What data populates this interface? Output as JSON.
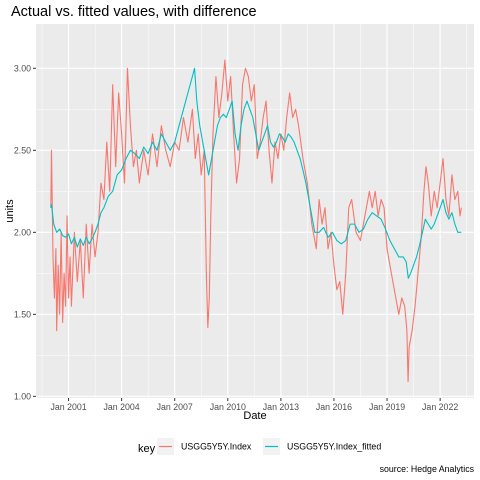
{
  "chart_data": {
    "type": "line",
    "title": "Actual vs. fitted values, with difference",
    "xlabel": "Date",
    "ylabel": "units",
    "caption": "source: Hedge Analytics",
    "legend": {
      "title": "key",
      "position": "bottom",
      "entries": [
        {
          "label": "USGG5Y5Y.Index",
          "color": "#F8766D"
        },
        {
          "label": "USGG5Y5Y.Index_fitted",
          "color": "#00BFC4"
        }
      ]
    },
    "x_ticks": [
      {
        "label": "Jan 2001",
        "value": "2001-01-01"
      },
      {
        "label": "Jan 2004",
        "value": "2004-01-01"
      },
      {
        "label": "Jan 2007",
        "value": "2007-01-01"
      },
      {
        "label": "Jan 2010",
        "value": "2010-01-01"
      },
      {
        "label": "Jan 2013",
        "value": "2013-01-01"
      },
      {
        "label": "Jan 2016",
        "value": "2016-01-01"
      },
      {
        "label": "Jan 2019",
        "value": "2019-01-01"
      },
      {
        "label": "Jan 2022",
        "value": "2022-01-01"
      }
    ],
    "y_ticks": [
      "1.00",
      "1.50",
      "2.00",
      "2.50",
      "3.00"
    ],
    "xlim": [
      "1999-03-01",
      "2023-12-01"
    ],
    "ylim": [
      0.99,
      3.27
    ],
    "grid": true,
    "panel_background": "#EBEBEB",
    "series": [
      {
        "name": "USGG5Y5Y.Index",
        "color": "#F8766D",
        "points": [
          [
            "2000-01-01",
            2.15
          ],
          [
            "2000-01-15",
            2.5
          ],
          [
            "2000-02-15",
            1.85
          ],
          [
            "2000-03-15",
            1.6
          ],
          [
            "2000-04-15",
            1.9
          ],
          [
            "2000-05-01",
            1.4
          ],
          [
            "2000-06-01",
            1.8
          ],
          [
            "2000-07-01",
            1.5
          ],
          [
            "2000-08-01",
            2.0
          ],
          [
            "2000-09-01",
            1.45
          ],
          [
            "2000-10-01",
            1.75
          ],
          [
            "2000-11-01",
            1.55
          ],
          [
            "2000-12-01",
            2.1
          ],
          [
            "2001-01-01",
            1.6
          ],
          [
            "2001-02-01",
            1.85
          ],
          [
            "2001-03-01",
            1.55
          ],
          [
            "2001-05-01",
            2.0
          ],
          [
            "2001-07-01",
            1.7
          ],
          [
            "2001-09-01",
            1.95
          ],
          [
            "2001-11-01",
            1.6
          ],
          [
            "2002-01-01",
            2.05
          ],
          [
            "2002-03-01",
            1.75
          ],
          [
            "2002-05-01",
            2.05
          ],
          [
            "2002-07-01",
            1.85
          ],
          [
            "2002-09-01",
            2.0
          ],
          [
            "2002-11-01",
            2.3
          ],
          [
            "2003-01-01",
            2.2
          ],
          [
            "2003-03-01",
            2.55
          ],
          [
            "2003-05-01",
            2.25
          ],
          [
            "2003-07-01",
            2.9
          ],
          [
            "2003-09-01",
            2.4
          ],
          [
            "2003-11-01",
            2.85
          ],
          [
            "2004-01-01",
            2.6
          ],
          [
            "2004-03-01",
            2.3
          ],
          [
            "2004-05-01",
            3.0
          ],
          [
            "2004-07-01",
            2.65
          ],
          [
            "2004-09-01",
            2.4
          ],
          [
            "2004-11-01",
            2.5
          ],
          [
            "2005-01-01",
            2.3
          ],
          [
            "2005-04-01",
            2.5
          ],
          [
            "2005-07-01",
            2.35
          ],
          [
            "2005-10-01",
            2.6
          ],
          [
            "2006-01-01",
            2.4
          ],
          [
            "2006-04-01",
            2.65
          ],
          [
            "2006-07-01",
            2.5
          ],
          [
            "2006-10-01",
            2.4
          ],
          [
            "2007-01-01",
            2.55
          ],
          [
            "2007-04-01",
            2.5
          ],
          [
            "2007-07-01",
            2.7
          ],
          [
            "2007-10-01",
            2.55
          ],
          [
            "2008-01-01",
            2.75
          ],
          [
            "2008-03-01",
            2.45
          ],
          [
            "2008-05-01",
            2.6
          ],
          [
            "2008-07-01",
            2.35
          ],
          [
            "2008-09-01",
            2.5
          ],
          [
            "2008-10-15",
            1.75
          ],
          [
            "2008-11-15",
            1.42
          ],
          [
            "2008-12-15",
            1.6
          ],
          [
            "2009-01-15",
            2.1
          ],
          [
            "2009-03-01",
            2.6
          ],
          [
            "2009-05-01",
            2.95
          ],
          [
            "2009-07-01",
            2.7
          ],
          [
            "2009-09-01",
            2.85
          ],
          [
            "2009-11-01",
            3.05
          ],
          [
            "2010-01-01",
            2.8
          ],
          [
            "2010-03-01",
            2.95
          ],
          [
            "2010-05-01",
            2.6
          ],
          [
            "2010-07-01",
            2.3
          ],
          [
            "2010-09-01",
            2.45
          ],
          [
            "2010-11-01",
            2.9
          ],
          [
            "2011-01-01",
            3.0
          ],
          [
            "2011-03-01",
            2.95
          ],
          [
            "2011-05-01",
            2.8
          ],
          [
            "2011-07-01",
            2.9
          ],
          [
            "2011-09-01",
            2.45
          ],
          [
            "2011-11-01",
            2.55
          ],
          [
            "2012-01-01",
            2.7
          ],
          [
            "2012-03-01",
            2.8
          ],
          [
            "2012-05-01",
            2.5
          ],
          [
            "2012-07-01",
            2.3
          ],
          [
            "2012-09-01",
            2.55
          ],
          [
            "2012-11-01",
            2.45
          ],
          [
            "2013-01-01",
            2.6
          ],
          [
            "2013-03-01",
            2.5
          ],
          [
            "2013-05-01",
            2.7
          ],
          [
            "2013-07-01",
            2.85
          ],
          [
            "2013-09-01",
            2.7
          ],
          [
            "2013-11-01",
            2.75
          ],
          [
            "2014-01-01",
            2.65
          ],
          [
            "2014-04-01",
            2.45
          ],
          [
            "2014-07-01",
            2.3
          ],
          [
            "2014-10-01",
            2.05
          ],
          [
            "2015-01-01",
            1.9
          ],
          [
            "2015-03-01",
            2.2
          ],
          [
            "2015-05-01",
            2.05
          ],
          [
            "2015-07-01",
            2.15
          ],
          [
            "2015-09-01",
            1.9
          ],
          [
            "2015-11-01",
            2.0
          ],
          [
            "2016-01-01",
            1.8
          ],
          [
            "2016-03-01",
            1.65
          ],
          [
            "2016-05-01",
            1.7
          ],
          [
            "2016-07-01",
            1.5
          ],
          [
            "2016-09-01",
            1.75
          ],
          [
            "2016-11-01",
            2.15
          ],
          [
            "2017-01-01",
            2.2
          ],
          [
            "2017-04-01",
            2.0
          ],
          [
            "2017-07-01",
            1.95
          ],
          [
            "2017-10-01",
            2.1
          ],
          [
            "2018-01-01",
            2.25
          ],
          [
            "2018-03-01",
            2.15
          ],
          [
            "2018-05-01",
            2.25
          ],
          [
            "2018-07-01",
            2.1
          ],
          [
            "2018-09-01",
            2.2
          ],
          [
            "2018-11-01",
            2.15
          ],
          [
            "2019-01-01",
            1.9
          ],
          [
            "2019-03-01",
            1.8
          ],
          [
            "2019-05-01",
            1.7
          ],
          [
            "2019-07-01",
            1.6
          ],
          [
            "2019-09-01",
            1.5
          ],
          [
            "2019-11-01",
            1.6
          ],
          [
            "2020-01-01",
            1.55
          ],
          [
            "2020-02-15",
            1.4
          ],
          [
            "2020-03-10",
            1.09
          ],
          [
            "2020-04-01",
            1.3
          ],
          [
            "2020-06-01",
            1.4
          ],
          [
            "2020-08-01",
            1.55
          ],
          [
            "2020-10-01",
            1.75
          ],
          [
            "2020-12-01",
            1.95
          ],
          [
            "2021-02-01",
            2.25
          ],
          [
            "2021-03-15",
            2.4
          ],
          [
            "2021-05-01",
            2.3
          ],
          [
            "2021-07-01",
            2.1
          ],
          [
            "2021-09-01",
            2.25
          ],
          [
            "2021-11-01",
            2.15
          ],
          [
            "2022-01-01",
            2.3
          ],
          [
            "2022-03-01",
            2.45
          ],
          [
            "2022-05-01",
            2.2
          ],
          [
            "2022-07-01",
            2.1
          ],
          [
            "2022-09-01",
            2.35
          ],
          [
            "2022-11-01",
            2.2
          ],
          [
            "2023-01-01",
            2.25
          ],
          [
            "2023-02-15",
            2.1
          ],
          [
            "2023-03-15",
            2.15
          ]
        ]
      },
      {
        "name": "USGG5Y5Y.Index_fitted",
        "color": "#00BFC4",
        "points": [
          [
            "2000-01-01",
            2.15
          ],
          [
            "2000-01-15",
            2.17
          ],
          [
            "2000-03-01",
            2.05
          ],
          [
            "2000-05-01",
            2.0
          ],
          [
            "2000-07-01",
            2.02
          ],
          [
            "2000-09-01",
            1.98
          ],
          [
            "2000-11-01",
            1.97
          ],
          [
            "2001-01-01",
            1.99
          ],
          [
            "2001-03-01",
            1.93
          ],
          [
            "2001-05-01",
            1.97
          ],
          [
            "2001-07-01",
            1.91
          ],
          [
            "2001-09-01",
            1.96
          ],
          [
            "2001-11-01",
            1.92
          ],
          [
            "2002-01-01",
            1.97
          ],
          [
            "2002-03-01",
            1.93
          ],
          [
            "2002-05-01",
            1.96
          ],
          [
            "2002-07-01",
            2.0
          ],
          [
            "2002-09-01",
            2.05
          ],
          [
            "2002-11-01",
            2.12
          ],
          [
            "2003-01-01",
            2.15
          ],
          [
            "2003-04-01",
            2.22
          ],
          [
            "2003-07-01",
            2.25
          ],
          [
            "2003-10-01",
            2.35
          ],
          [
            "2004-01-01",
            2.38
          ],
          [
            "2004-04-01",
            2.45
          ],
          [
            "2004-07-01",
            2.5
          ],
          [
            "2004-10-01",
            2.48
          ],
          [
            "2005-01-01",
            2.45
          ],
          [
            "2005-04-01",
            2.52
          ],
          [
            "2005-07-01",
            2.48
          ],
          [
            "2005-10-01",
            2.55
          ],
          [
            "2006-01-01",
            2.5
          ],
          [
            "2006-04-01",
            2.6
          ],
          [
            "2006-07-01",
            2.55
          ],
          [
            "2006-10-01",
            2.5
          ],
          [
            "2007-01-01",
            2.55
          ],
          [
            "2007-04-01",
            2.65
          ],
          [
            "2007-07-01",
            2.75
          ],
          [
            "2007-10-01",
            2.85
          ],
          [
            "2008-01-01",
            2.95
          ],
          [
            "2008-02-15",
            3.0
          ],
          [
            "2008-04-01",
            2.8
          ],
          [
            "2008-06-01",
            2.65
          ],
          [
            "2008-08-01",
            2.55
          ],
          [
            "2008-10-01",
            2.45
          ],
          [
            "2008-12-01",
            2.35
          ],
          [
            "2009-02-01",
            2.45
          ],
          [
            "2009-04-01",
            2.55
          ],
          [
            "2009-06-01",
            2.65
          ],
          [
            "2009-08-01",
            2.7
          ],
          [
            "2009-10-01",
            2.72
          ],
          [
            "2009-12-01",
            2.7
          ],
          [
            "2010-02-01",
            2.75
          ],
          [
            "2010-04-01",
            2.8
          ],
          [
            "2010-06-01",
            2.6
          ],
          [
            "2010-08-01",
            2.5
          ],
          [
            "2010-10-01",
            2.65
          ],
          [
            "2010-12-01",
            2.75
          ],
          [
            "2011-02-01",
            2.8
          ],
          [
            "2011-04-01",
            2.75
          ],
          [
            "2011-06-01",
            2.7
          ],
          [
            "2011-08-01",
            2.6
          ],
          [
            "2011-10-01",
            2.5
          ],
          [
            "2011-12-01",
            2.55
          ],
          [
            "2012-02-01",
            2.6
          ],
          [
            "2012-04-01",
            2.65
          ],
          [
            "2012-06-01",
            2.55
          ],
          [
            "2012-08-01",
            2.52
          ],
          [
            "2012-10-01",
            2.55
          ],
          [
            "2012-12-01",
            2.6
          ],
          [
            "2013-02-01",
            2.58
          ],
          [
            "2013-04-01",
            2.55
          ],
          [
            "2013-06-01",
            2.6
          ],
          [
            "2013-08-01",
            2.58
          ],
          [
            "2013-10-01",
            2.55
          ],
          [
            "2013-12-01",
            2.5
          ],
          [
            "2014-02-01",
            2.45
          ],
          [
            "2014-04-01",
            2.38
          ],
          [
            "2014-06-01",
            2.3
          ],
          [
            "2014-08-01",
            2.2
          ],
          [
            "2014-10-01",
            2.1
          ],
          [
            "2014-12-01",
            2.0
          ],
          [
            "2015-03-01",
            2.0
          ],
          [
            "2015-06-01",
            2.03
          ],
          [
            "2015-09-01",
            1.97
          ],
          [
            "2015-12-01",
            2.0
          ],
          [
            "2016-03-01",
            1.95
          ],
          [
            "2016-06-01",
            1.93
          ],
          [
            "2016-09-01",
            1.95
          ],
          [
            "2016-12-01",
            2.05
          ],
          [
            "2017-03-01",
            2.05
          ],
          [
            "2017-06-01",
            2.0
          ],
          [
            "2017-09-01",
            2.02
          ],
          [
            "2017-12-01",
            2.08
          ],
          [
            "2018-03-01",
            2.12
          ],
          [
            "2018-06-01",
            2.1
          ],
          [
            "2018-09-01",
            2.08
          ],
          [
            "2018-12-01",
            2.02
          ],
          [
            "2019-03-01",
            1.95
          ],
          [
            "2019-06-01",
            1.9
          ],
          [
            "2019-09-01",
            1.85
          ],
          [
            "2019-12-01",
            1.85
          ],
          [
            "2020-02-01",
            1.82
          ],
          [
            "2020-03-15",
            1.72
          ],
          [
            "2020-05-01",
            1.75
          ],
          [
            "2020-07-01",
            1.8
          ],
          [
            "2020-09-01",
            1.85
          ],
          [
            "2020-11-01",
            1.92
          ],
          [
            "2021-01-01",
            2.0
          ],
          [
            "2021-03-01",
            2.08
          ],
          [
            "2021-05-01",
            2.05
          ],
          [
            "2021-07-01",
            2.02
          ],
          [
            "2021-09-01",
            2.05
          ],
          [
            "2021-11-01",
            2.1
          ],
          [
            "2022-01-01",
            2.15
          ],
          [
            "2022-03-01",
            2.2
          ],
          [
            "2022-05-01",
            2.12
          ],
          [
            "2022-07-01",
            2.08
          ],
          [
            "2022-09-01",
            2.12
          ],
          [
            "2022-11-01",
            2.05
          ],
          [
            "2023-01-01",
            2.0
          ],
          [
            "2023-03-15",
            2.0
          ]
        ]
      }
    ]
  }
}
